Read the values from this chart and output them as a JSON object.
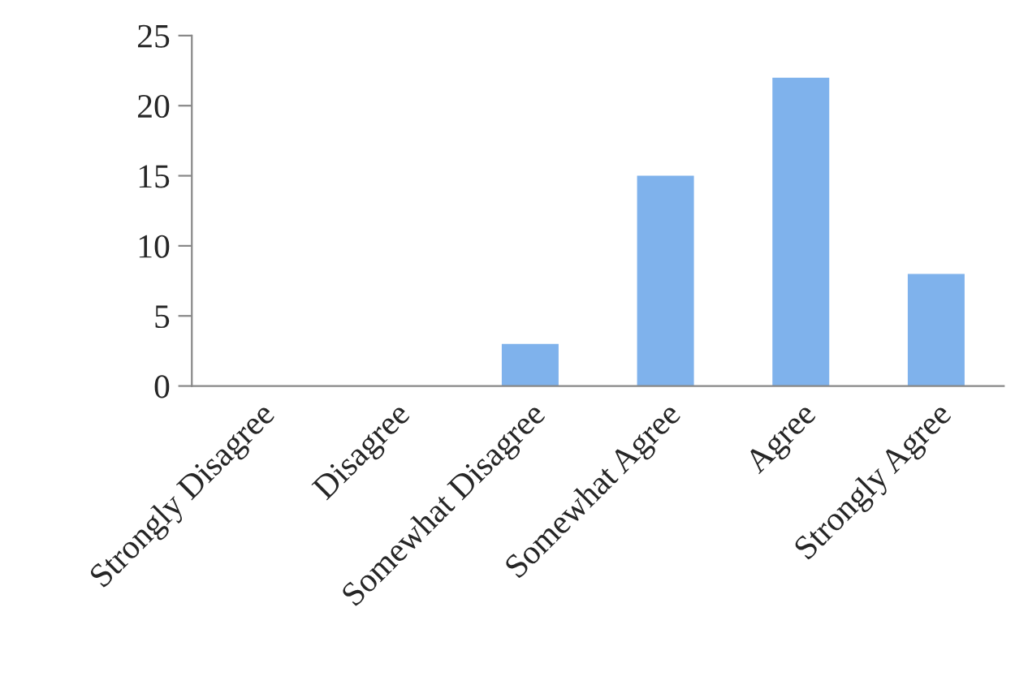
{
  "chart_data": {
    "type": "bar",
    "categories": [
      "Strongly Disagree",
      "Disagree",
      "Somewhat Disagree",
      "Somewhat Agree",
      "Agree",
      "Strongly Agree"
    ],
    "values": [
      0,
      0,
      3,
      15,
      22,
      8
    ],
    "color": "#7fb2ec",
    "ylim": [
      0,
      25
    ],
    "yticks": [
      0,
      5,
      10,
      15,
      20,
      25
    ],
    "grid": false,
    "legend": false
  }
}
